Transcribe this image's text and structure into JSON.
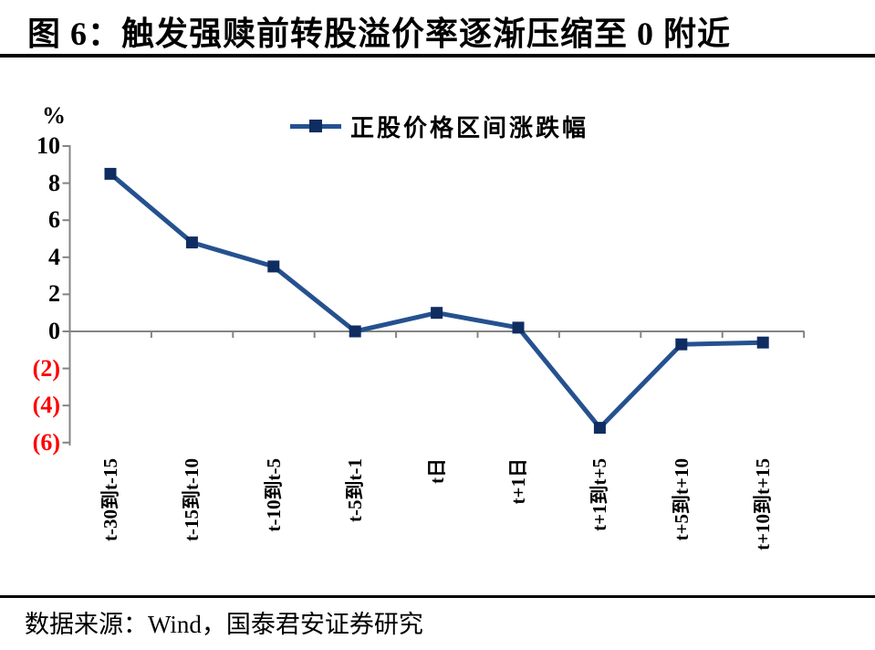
{
  "page": {
    "title": "图 6：触发强赎前转股溢价率逐渐压缩至 0 附近",
    "source": "数据来源：Wind，国泰君安证券研究"
  },
  "chart_data": {
    "type": "line",
    "title": "图 6：触发强赎前转股溢价率逐渐压缩至 0 附近",
    "unit_label": "%",
    "legend_position": "top-center",
    "grid": false,
    "categories": [
      "t-30到t-15",
      "t-15到t-10",
      "t-10到t-5",
      "t-5到t-1",
      "t日",
      "t+1日",
      "t+1到t+5",
      "t+5到t+10",
      "t+10到t+15"
    ],
    "series": [
      {
        "name": "正股价格区间涨跌幅",
        "values": [
          8.5,
          4.8,
          3.5,
          0.0,
          1.0,
          0.2,
          -5.2,
          -0.7,
          -0.6
        ]
      }
    ],
    "ylim": [
      -6,
      10
    ],
    "y_ticks": [
      {
        "label": "10",
        "value": 10,
        "color": "#000000"
      },
      {
        "label": "8",
        "value": 8,
        "color": "#000000"
      },
      {
        "label": "6",
        "value": 6,
        "color": "#000000"
      },
      {
        "label": "4",
        "value": 4,
        "color": "#000000"
      },
      {
        "label": "2",
        "value": 2,
        "color": "#000000"
      },
      {
        "label": "0",
        "value": 0,
        "color": "#000000"
      },
      {
        "label": "(2)",
        "value": -2,
        "color": "#FF0000"
      },
      {
        "label": "(4)",
        "value": -4,
        "color": "#FF0000"
      },
      {
        "label": "(6)",
        "value": -6,
        "color": "#FF0000"
      }
    ],
    "colors": {
      "line": "#25518F",
      "marker": "#0F2D61",
      "axis": "#848484",
      "negative_label": "#FF0000"
    }
  }
}
